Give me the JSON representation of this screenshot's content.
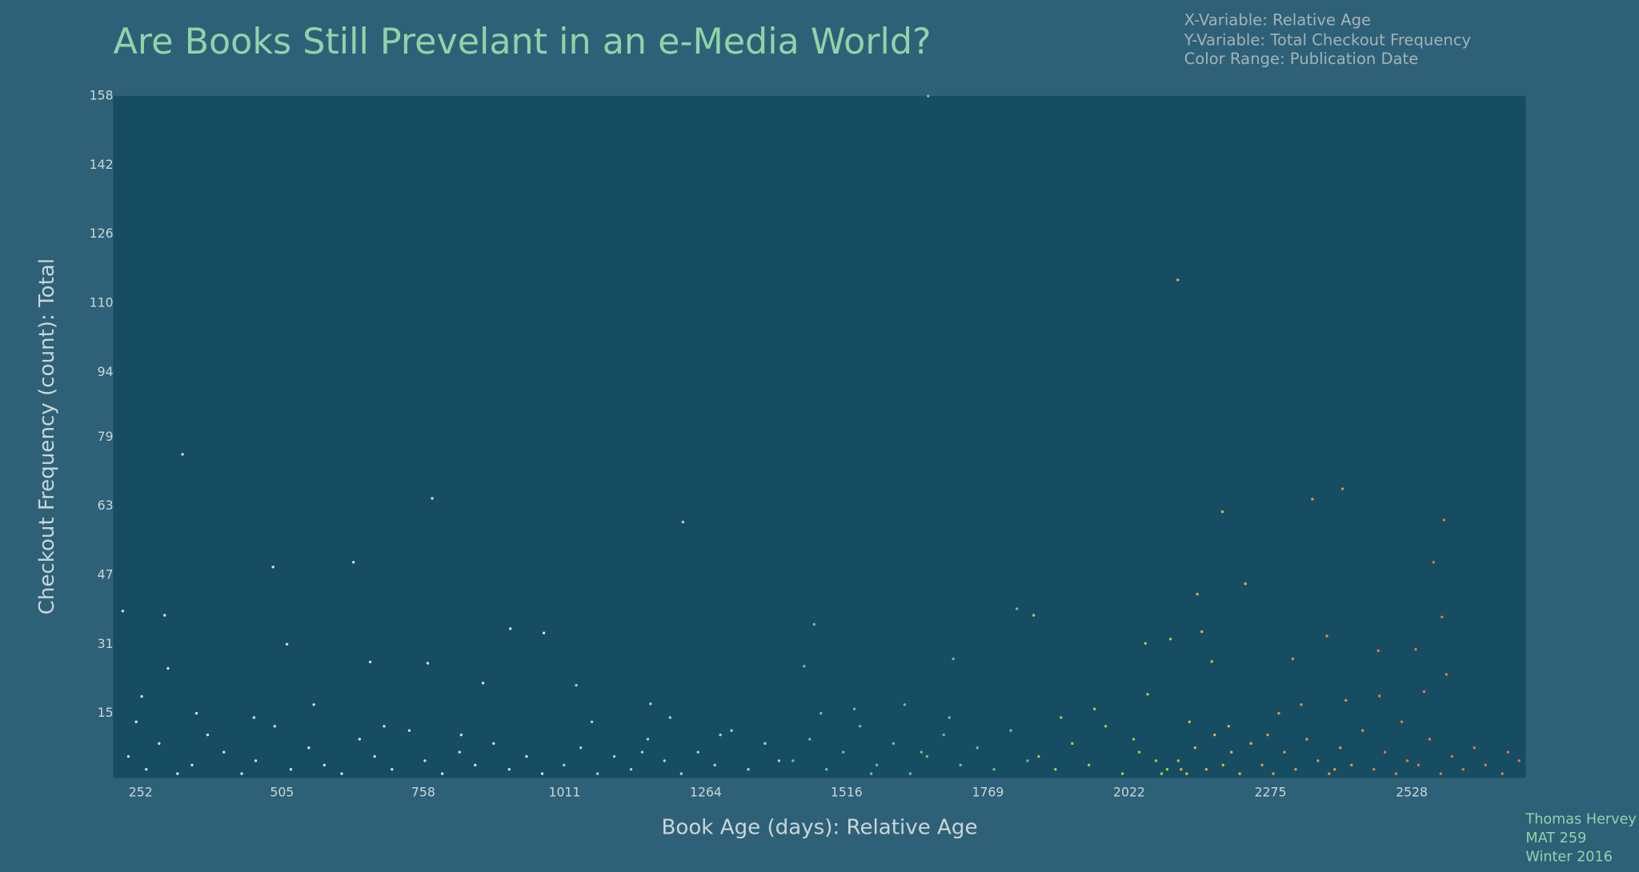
{
  "chart_data": {
    "type": "scatter",
    "title": "Are Books Still Prevelant in an e-Media World?",
    "notes": [
      "X-Variable: Relative Age",
      "Y-Variable: Total Checkout Frequency",
      "Color Range: Publication Date"
    ],
    "xlabel": "Book Age (days): Relative Age",
    "ylabel": "Checkout Frequency (count): Total",
    "credit": [
      "Thomas Hervey",
      "MAT 259",
      "Winter 2016"
    ],
    "xlim": [
      203,
      2732
    ],
    "xticks": [
      252,
      505,
      758,
      1011,
      1264,
      1516,
      1769,
      2022,
      2275,
      2528
    ],
    "ylim": [
      0,
      158
    ],
    "yticks": [
      15,
      31,
      47,
      63,
      79,
      94,
      110,
      126,
      142,
      158
    ],
    "grid": false,
    "series": [
      {
        "color": "#cfdede",
        "x": [
          220,
          295,
          327,
          301,
          254,
          489,
          514,
          774,
          633,
          766,
          865,
          914,
          974,
          663,
          230,
          262,
          285,
          318,
          344,
          372,
          401,
          433,
          458,
          492,
          521,
          553,
          581,
          612,
          644,
          671,
          702,
          733,
          761,
          792,
          823,
          851,
          884,
          912,
          943,
          971,
          244,
          352,
          455,
          562,
          688,
          826
        ],
        "values": [
          38.7,
          37.7,
          75,
          25.4,
          18.9,
          48.9,
          31,
          64.8,
          50,
          26.6,
          22,
          34.6,
          33.6,
          26.9,
          5,
          2,
          8,
          1,
          3,
          10,
          6,
          1,
          4,
          12,
          2,
          7,
          3,
          1,
          9,
          5,
          2,
          11,
          4,
          1,
          6,
          3,
          8,
          2,
          5,
          1,
          13,
          15,
          14,
          17,
          12,
          10
        ]
      },
      {
        "color": "#9cd9c0",
        "x": [
          1032,
          1165,
          1223,
          1010,
          1040,
          1070,
          1100,
          1130,
          1160,
          1190,
          1220,
          1250,
          1280,
          1310,
          1340,
          1370,
          1395,
          1060,
          1200,
          1290,
          1150
        ],
        "values": [
          21.5,
          17.2,
          59.3,
          3,
          7,
          1,
          5,
          2,
          9,
          4,
          1,
          6,
          3,
          11,
          2,
          8,
          4,
          13,
          14,
          10,
          6
        ]
      },
      {
        "color": "#62c98c",
        "x": [
          1458,
          1440,
          1662,
          1707,
          1821,
          1420,
          1450,
          1480,
          1510,
          1540,
          1570,
          1600,
          1630,
          1660,
          1690,
          1720,
          1750,
          1780,
          1810,
          1840,
          1530,
          1620,
          1700,
          1470,
          1560,
          1650
        ],
        "values": [
          35.6,
          25.9,
          158,
          27.6,
          39.2,
          4,
          9,
          2,
          6,
          12,
          3,
          8,
          1,
          5,
          10,
          3,
          7,
          2,
          11,
          4,
          16,
          17,
          14,
          15,
          1,
          6
        ]
      },
      {
        "color": "#a8cf3e",
        "x": [
          1851,
          2051,
          2096,
          2055,
          1860,
          1890,
          1920,
          1950,
          1980,
          2010,
          2040,
          2070,
          2090,
          1900,
          1960,
          2030,
          2080
        ],
        "values": [
          37.7,
          31.2,
          32.2,
          19.4,
          5,
          2,
          8,
          3,
          12,
          1,
          6,
          4,
          2,
          14,
          16,
          9,
          1
        ]
      },
      {
        "color": "#e4b23a",
        "x": [
          2109,
          2189,
          2230,
          2144,
          2152,
          2110,
          2125,
          2140,
          2160,
          2175,
          2190,
          2205,
          2220,
          2240,
          2130,
          2170,
          2200,
          2115
        ],
        "values": [
          115.4,
          61.7,
          45,
          42.6,
          33.9,
          4,
          1,
          7,
          2,
          10,
          3,
          6,
          1,
          8,
          13,
          27,
          12,
          2
        ]
      },
      {
        "color": "#e8943c",
        "x": [
          2350,
          2404,
          2376,
          2315,
          2260,
          2280,
          2300,
          2320,
          2340,
          2360,
          2380,
          2400,
          2420,
          2440,
          2290,
          2330,
          2410,
          2270,
          2390
        ],
        "values": [
          64.6,
          67,
          32.9,
          27.6,
          3,
          1,
          6,
          2,
          9,
          4,
          1,
          7,
          3,
          11,
          15,
          17,
          18,
          10,
          2
        ]
      },
      {
        "color": "#ea7548",
        "x": [
          2586,
          2567,
          2582,
          2468,
          2535,
          2460,
          2480,
          2500,
          2520,
          2540,
          2560,
          2580,
          2600,
          2620,
          2640,
          2660,
          2690,
          2720,
          2510,
          2550,
          2590,
          2470,
          2700
        ],
        "values": [
          59.8,
          50,
          37.3,
          29.5,
          29.8,
          2,
          6,
          1,
          4,
          3,
          9,
          1,
          5,
          2,
          7,
          3,
          1,
          4,
          13,
          20,
          24,
          19,
          6
        ]
      }
    ]
  }
}
